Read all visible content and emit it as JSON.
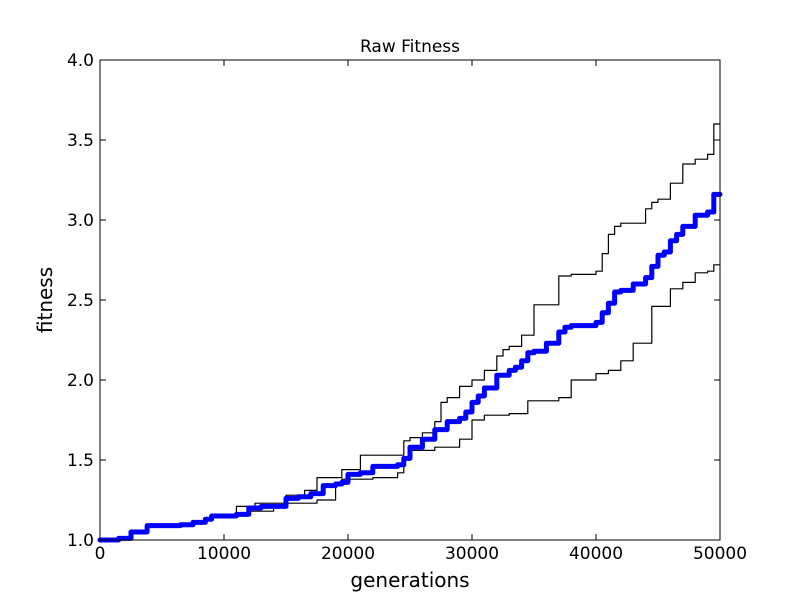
{
  "chart_data": {
    "type": "line",
    "title": "Raw Fitness",
    "xlabel": "generations",
    "ylabel": "fitness",
    "xlim": [
      0,
      50000
    ],
    "ylim": [
      1.0,
      4.0
    ],
    "xticks": [
      0,
      10000,
      20000,
      30000,
      40000,
      50000
    ],
    "yticks": [
      1.0,
      1.5,
      2.0,
      2.5,
      3.0,
      3.5,
      4.0
    ],
    "xtick_labels": [
      "0",
      "10000",
      "20000",
      "30000",
      "40000",
      "50000"
    ],
    "ytick_labels": [
      "1.0",
      "1.5",
      "2.0",
      "2.5",
      "3.0",
      "3.5",
      "4.0"
    ],
    "grid": false,
    "series": [
      {
        "color": "#0000ff",
        "width": 5,
        "style": "step",
        "x": [
          0,
          1500,
          2500,
          3800,
          6500,
          7500,
          8500,
          9000,
          11000,
          12000,
          13000,
          15000,
          16000,
          17000,
          18000,
          19000,
          19500,
          20000,
          21000,
          22000,
          24000,
          24500,
          25000,
          26000,
          27000,
          28000,
          29000,
          29500,
          30000,
          30500,
          31000,
          32000,
          33000,
          33500,
          34000,
          34500,
          35000,
          36000,
          37000,
          37500,
          38000,
          40000,
          40500,
          41000,
          41500,
          42000,
          43000,
          44000,
          44500,
          45000,
          45500,
          46000,
          46500,
          47000,
          48000,
          49000,
          49500,
          50000
        ],
        "y": [
          1.0,
          1.01,
          1.05,
          1.09,
          1.095,
          1.11,
          1.13,
          1.15,
          1.16,
          1.2,
          1.21,
          1.26,
          1.27,
          1.29,
          1.34,
          1.35,
          1.36,
          1.41,
          1.42,
          1.46,
          1.47,
          1.51,
          1.58,
          1.63,
          1.69,
          1.74,
          1.76,
          1.8,
          1.86,
          1.9,
          1.95,
          2.03,
          2.06,
          2.08,
          2.12,
          2.17,
          2.18,
          2.23,
          2.3,
          2.33,
          2.34,
          2.36,
          2.42,
          2.48,
          2.55,
          2.56,
          2.6,
          2.64,
          2.71,
          2.78,
          2.8,
          2.87,
          2.91,
          2.96,
          3.03,
          3.05,
          3.16,
          3.16
        ]
      },
      {
        "color": "#000000",
        "width": 1.2,
        "style": "step",
        "x": [
          0,
          1500,
          2500,
          3800,
          6500,
          7500,
          8500,
          9000,
          11000,
          12500,
          15000,
          16500,
          17500,
          19500,
          21000,
          24500,
          25000,
          26000,
          27000,
          27500,
          28000,
          29000,
          30000,
          31000,
          32000,
          32500,
          33000,
          34000,
          35000,
          37000,
          38000,
          40000,
          40500,
          41000,
          41500,
          42000,
          44000,
          44500,
          45000,
          46000,
          47000,
          48000,
          49000,
          49500,
          50000
        ],
        "y": [
          1.0,
          1.01,
          1.05,
          1.09,
          1.095,
          1.11,
          1.13,
          1.15,
          1.21,
          1.23,
          1.28,
          1.31,
          1.39,
          1.44,
          1.53,
          1.62,
          1.64,
          1.67,
          1.74,
          1.86,
          1.89,
          1.96,
          2.0,
          2.06,
          2.15,
          2.19,
          2.21,
          2.28,
          2.47,
          2.65,
          2.66,
          2.68,
          2.79,
          2.91,
          2.96,
          2.98,
          3.07,
          3.11,
          3.13,
          3.23,
          3.35,
          3.38,
          3.41,
          3.6,
          3.6
        ]
      },
      {
        "color": "#000000",
        "width": 1.2,
        "style": "step",
        "x": [
          0,
          1500,
          2500,
          3800,
          6500,
          7500,
          8500,
          9000,
          11000,
          12000,
          14000,
          15000,
          17500,
          19000,
          19500,
          22000,
          24000,
          24500,
          25000,
          27000,
          29000,
          30000,
          31000,
          33000,
          34500,
          37000,
          38000,
          40000,
          41000,
          42000,
          43000,
          44500,
          46000,
          47000,
          48000,
          49000,
          49500,
          50000
        ],
        "y": [
          1.0,
          1.01,
          1.05,
          1.09,
          1.095,
          1.11,
          1.13,
          1.15,
          1.16,
          1.18,
          1.2,
          1.23,
          1.25,
          1.36,
          1.38,
          1.39,
          1.42,
          1.5,
          1.56,
          1.58,
          1.63,
          1.75,
          1.78,
          1.79,
          1.87,
          1.89,
          2.0,
          2.04,
          2.06,
          2.12,
          2.23,
          2.46,
          2.57,
          2.61,
          2.67,
          2.68,
          2.72,
          2.72
        ]
      }
    ]
  }
}
